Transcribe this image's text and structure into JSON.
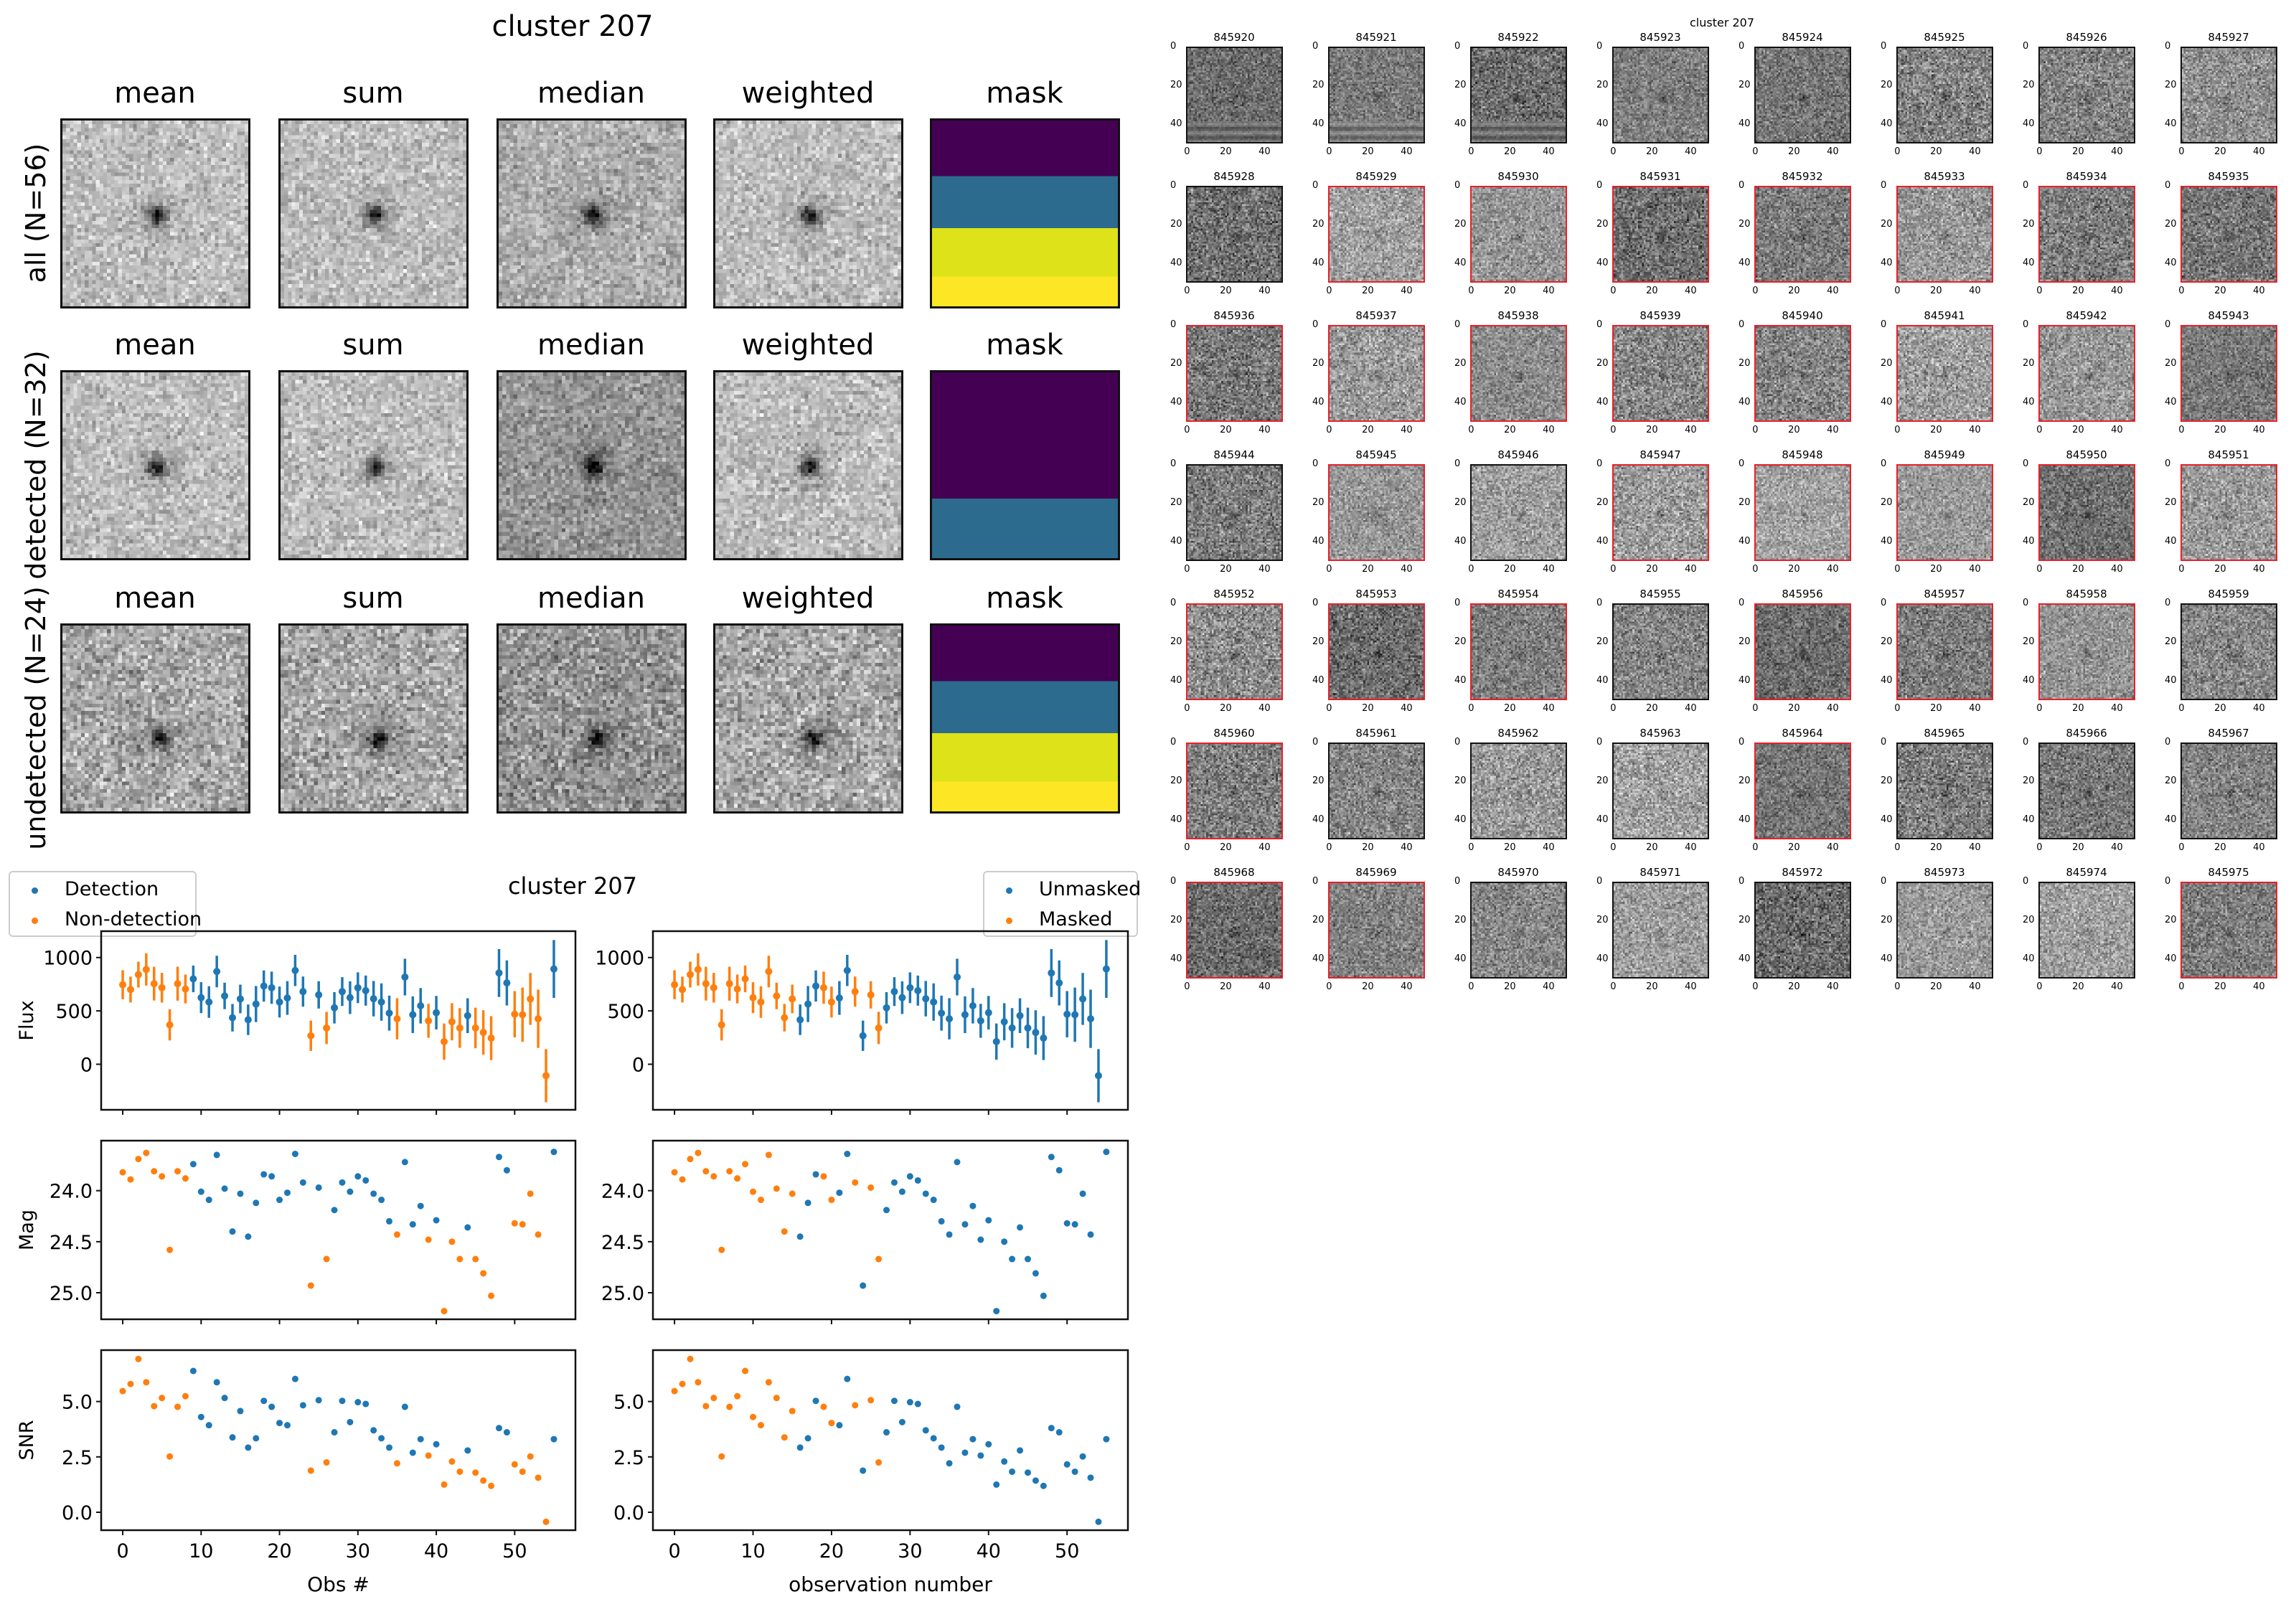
{
  "stacks": {
    "title": "cluster 207",
    "column_titles": [
      "mean",
      "sum",
      "median",
      "weighted",
      "mask"
    ],
    "row_labels": [
      "all (N=56)",
      "detected (N=32)",
      "undetected (N=24)"
    ]
  },
  "thumbnails": {
    "title": "cluster 207",
    "tick_labels": [
      "0",
      "20",
      "40"
    ],
    "ids": [
      "845920",
      "845921",
      "845922",
      "845923",
      "845924",
      "845925",
      "845926",
      "845927",
      "845928",
      "845929",
      "845930",
      "845931",
      "845932",
      "845933",
      "845934",
      "845935",
      "845936",
      "845937",
      "845938",
      "845939",
      "845940",
      "845941",
      "845942",
      "845943",
      "845944",
      "845945",
      "845946",
      "845947",
      "845948",
      "845949",
      "845950",
      "845951",
      "845952",
      "845953",
      "845954",
      "845955",
      "845956",
      "845957",
      "845958",
      "845959",
      "845960",
      "845961",
      "845962",
      "845963",
      "845964",
      "845965",
      "845966",
      "845967",
      "845968",
      "845969",
      "845970",
      "845971",
      "845972",
      "845973",
      "845974",
      "845975"
    ],
    "border_colors": {
      "detected": "#e8202a",
      "undetected": "#111111"
    }
  },
  "chart_data": {
    "type": "scatter",
    "title": "cluster 207",
    "x": [
      0,
      1,
      2,
      3,
      4,
      5,
      6,
      7,
      8,
      9,
      10,
      11,
      12,
      13,
      14,
      15,
      16,
      17,
      18,
      19,
      20,
      21,
      22,
      23,
      24,
      25,
      26,
      27,
      28,
      29,
      30,
      31,
      32,
      33,
      34,
      35,
      36,
      37,
      38,
      39,
      40,
      41,
      42,
      43,
      44,
      45,
      46,
      47,
      48,
      49,
      50,
      51,
      52,
      53,
      54,
      55
    ],
    "flux": [
      745,
      700,
      840,
      888,
      755,
      717,
      369,
      755,
      705,
      800,
      624,
      583,
      869,
      640,
      436,
      612,
      417,
      564,
      733,
      717,
      583,
      621,
      879,
      681,
      267,
      650,
      340,
      529,
      681,
      624,
      717,
      690,
      614,
      583,
      479,
      426,
      817,
      464,
      548,
      407,
      483,
      212,
      398,
      340,
      455,
      340,
      298,
      245,
      855,
      762,
      469,
      464,
      612,
      426,
      -107,
      893
    ],
    "flux_err": [
      136,
      121,
      121,
      151,
      158,
      139,
      146,
      159,
      135,
      125,
      145,
      148,
      148,
      124,
      129,
      134,
      143,
      169,
      146,
      151,
      145,
      158,
      146,
      141,
      142,
      128,
      151,
      147,
      135,
      153,
      144,
      141,
      166,
      175,
      164,
      193,
      172,
      172,
      166,
      159,
      157,
      170,
      174,
      186,
      163,
      190,
      208,
      206,
      225,
      211,
      217,
      254,
      243,
      273,
      249,
      271
    ],
    "mag": [
      23.82,
      23.89,
      23.69,
      23.63,
      23.81,
      23.86,
      24.58,
      23.81,
      23.88,
      23.74,
      24.01,
      24.09,
      23.65,
      23.98,
      24.4,
      24.03,
      24.45,
      24.12,
      23.84,
      23.86,
      24.09,
      24.02,
      23.64,
      23.92,
      24.93,
      23.97,
      24.67,
      24.19,
      23.92,
      24.01,
      23.86,
      23.9,
      24.03,
      24.09,
      24.3,
      24.43,
      23.72,
      24.33,
      24.15,
      24.48,
      24.29,
      25.18,
      24.5,
      24.67,
      24.36,
      24.67,
      24.81,
      25.03,
      23.67,
      23.8,
      24.32,
      24.33,
      24.03,
      24.43,
      null,
      23.62
    ],
    "snr": [
      5.47,
      5.79,
      6.92,
      5.87,
      4.79,
      5.16,
      2.52,
      4.76,
      5.24,
      6.38,
      4.3,
      3.93,
      5.87,
      5.16,
      3.38,
      4.57,
      2.92,
      3.34,
      5.03,
      4.76,
      4.03,
      3.93,
      6.02,
      4.83,
      1.88,
      5.06,
      2.25,
      3.61,
      5.03,
      4.07,
      4.97,
      4.89,
      3.7,
      3.34,
      2.92,
      2.21,
      4.76,
      2.69,
      3.3,
      2.56,
      3.07,
      1.25,
      2.29,
      1.83,
      2.79,
      1.79,
      1.43,
      1.19,
      3.8,
      3.61,
      2.16,
      1.83,
      2.52,
      1.56,
      -0.43,
      3.3
    ],
    "detected": [
      0,
      0,
      0,
      0,
      0,
      0,
      0,
      0,
      0,
      1,
      1,
      1,
      1,
      1,
      1,
      1,
      1,
      1,
      1,
      1,
      1,
      1,
      1,
      1,
      0,
      1,
      0,
      1,
      1,
      1,
      1,
      1,
      1,
      1,
      1,
      0,
      1,
      1,
      1,
      0,
      1,
      0,
      0,
      0,
      1,
      0,
      0,
      0,
      1,
      1,
      0,
      0,
      0,
      0,
      0,
      1
    ],
    "masked": [
      1,
      1,
      1,
      1,
      1,
      1,
      1,
      1,
      1,
      1,
      1,
      1,
      1,
      1,
      1,
      1,
      0,
      0,
      0,
      1,
      1,
      0,
      0,
      1,
      0,
      1,
      1,
      0,
      0,
      0,
      0,
      0,
      0,
      0,
      0,
      0,
      0,
      0,
      0,
      0,
      0,
      0,
      0,
      0,
      0,
      0,
      0,
      0,
      0,
      0,
      0,
      0,
      0,
      0,
      0,
      0
    ],
    "xlim": [
      -2.75,
      57.75
    ],
    "xticks": [
      0,
      10,
      20,
      30,
      40,
      50
    ],
    "xticklabels": [
      "0",
      "10",
      "20",
      "30",
      "40",
      "50"
    ],
    "rows": [
      {
        "key": "flux",
        "ylabel": "Flux",
        "ylim": [
          -427,
          1247
        ],
        "yticks": [
          1000,
          500,
          0
        ],
        "yticklabels": [
          "1000",
          "500",
          "0"
        ],
        "errorbars": true
      },
      {
        "key": "mag",
        "ylabel": "Mag",
        "ylim": [
          25.26,
          23.51
        ],
        "inverted": true,
        "yticks": [
          24.0,
          24.5,
          25.0
        ],
        "yticklabels": [
          "24.0",
          "24.5",
          "25.0"
        ]
      },
      {
        "key": "snr",
        "ylabel": "SNR",
        "ylim": [
          -0.81,
          7.32
        ],
        "yticks": [
          5.0,
          2.5,
          0.0
        ],
        "yticklabels": [
          "5.0",
          "2.5",
          "0.0"
        ]
      }
    ],
    "columns": [
      {
        "color_by": "detected",
        "xlabel": "Obs #",
        "legend_placement": "top-left",
        "legend": [
          {
            "label": "Detection",
            "color": "#1f77b4"
          },
          {
            "label": "Non-detection",
            "color": "#ff7f0e"
          }
        ]
      },
      {
        "color_by": "masked",
        "xlabel": "observation number",
        "legend_placement": "top-right",
        "legend": [
          {
            "label": "Unmasked",
            "color": "#1f77b4"
          },
          {
            "label": "Masked",
            "color": "#ff7f0e"
          }
        ]
      }
    ],
    "colors": {
      "blue": "#1f77b4",
      "orange": "#ff7f0e"
    }
  }
}
